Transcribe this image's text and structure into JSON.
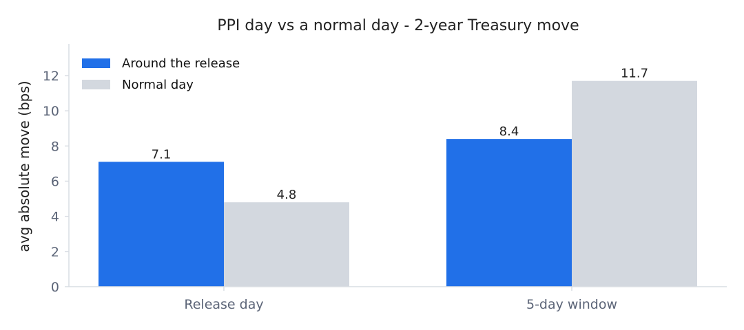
{
  "chart_data": {
    "type": "bar",
    "title": "PPI day vs a normal day - 2-year Treasury move",
    "xlabel": "",
    "ylabel": "avg absolute move (bps)",
    "categories": [
      "Release day",
      "5-day window"
    ],
    "series": [
      {
        "name": "Around the release",
        "values": [
          7.1,
          8.4
        ],
        "color": "#2170e8"
      },
      {
        "name": "Normal day",
        "values": [
          4.8,
          11.7
        ],
        "color": "#d3d8df"
      }
    ],
    "ylim": [
      0,
      13.8
    ],
    "yticks": [
      0,
      2,
      4,
      6,
      8,
      10,
      12
    ],
    "value_labels": [
      [
        "7.1",
        "8.4"
      ],
      [
        "4.8",
        "11.7"
      ]
    ],
    "grid": false,
    "legend_position": "top-left",
    "axis_color": "#d9dde3"
  }
}
